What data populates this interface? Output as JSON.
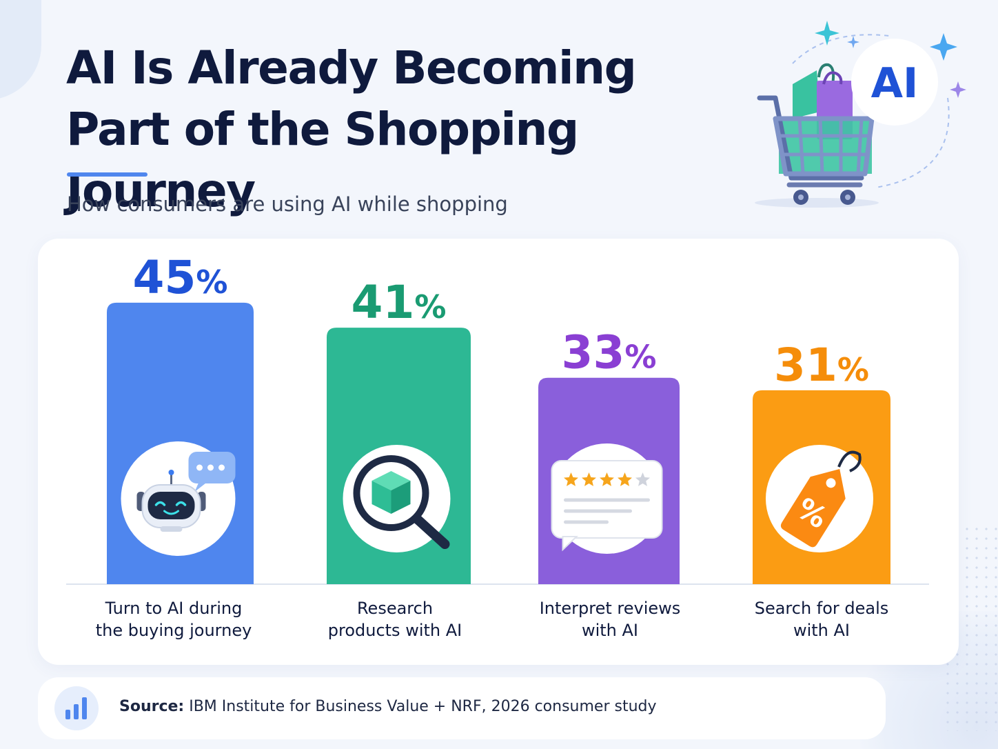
{
  "header": {
    "title_line1": "AI Is Already Becoming",
    "title_line2": "Part of the Shopping Journey",
    "subtitle": "How consumers are using AI while shopping",
    "badge_text": "AI"
  },
  "colors": {
    "title": "#0f1a3d",
    "accent": "#4f86ee",
    "series": [
      "#4f86ee",
      "#2db894",
      "#8a5fdb",
      "#fb9c13"
    ],
    "value_text": [
      "#1f52d6",
      "#1a9b72",
      "#8a3fd3",
      "#f58d0a"
    ]
  },
  "icons": [
    "robot-chat-icon",
    "magnifier-box-icon",
    "review-stars-icon",
    "discount-tag-icon"
  ],
  "chart_data": {
    "type": "bar",
    "categories": [
      "Turn to AI during\nthe buying journey",
      "Research\nproducts with AI",
      "Interpret reviews\nwith AI",
      "Search for deals\nwith AI"
    ],
    "values": [
      45,
      41,
      33,
      31
    ],
    "value_labels": [
      "45",
      "41",
      "33",
      "31"
    ],
    "unit": "%",
    "grid": false,
    "legend": "none"
  },
  "footer": {
    "source_label": "Source:",
    "source_text": " IBM Institute for Business Value + NRF, 2026 consumer study",
    "icon": "bar-chart-icon"
  }
}
